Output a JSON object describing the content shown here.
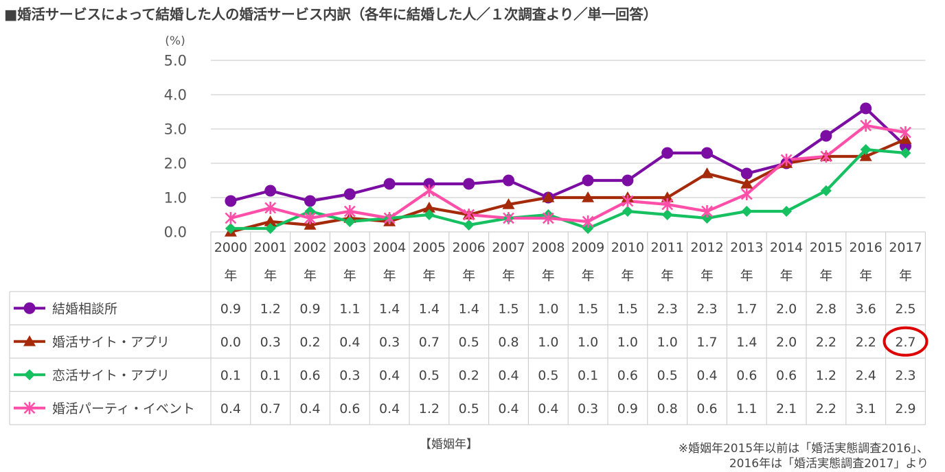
{
  "title": "■婚活サービスによって結婚した人の婚活サービス内訳（各年に結婚した人／１次調査より／単一回答）",
  "x_axis_label": "【婚姻年】",
  "footnote": [
    "※婚姻年2015年以前は「婚活実態調査2016」、",
    "2016年は「婚活実態調査2017」より"
  ],
  "colors": {
    "kekkon_soudansho": "#7B0DA3",
    "konkatsu_site": "#A52A0A",
    "renkatsu_site": "#16C060",
    "konkatsu_party": "#FF4FA8",
    "grid": "#D0D0D0",
    "highlight": "#DD0000"
  },
  "chart_data": {
    "type": "line",
    "unit": "(%)",
    "ylim": [
      0,
      5
    ],
    "yticks": [
      "0.0",
      "1.0",
      "2.0",
      "3.0",
      "4.0",
      "5.0"
    ],
    "grid": true,
    "legend": "data-table-left",
    "categories": [
      "2000",
      "2001",
      "2002",
      "2003",
      "2004",
      "2005",
      "2006",
      "2007",
      "2008",
      "2009",
      "2010",
      "2011",
      "2012",
      "2013",
      "2014",
      "2015",
      "2016",
      "2017"
    ],
    "category_suffix": "年",
    "series": [
      {
        "name": "結婚相談所",
        "color_key": "kekkon_soudansho",
        "marker": "circle",
        "values": [
          0.9,
          1.2,
          0.9,
          1.1,
          1.4,
          1.4,
          1.4,
          1.5,
          1.0,
          1.5,
          1.5,
          2.3,
          2.3,
          1.7,
          2.0,
          2.8,
          3.6,
          2.5
        ],
        "labels": [
          "0.9",
          "1.2",
          "0.9",
          "1.1",
          "1.4",
          "1.4",
          "1.4",
          "1.5",
          "1.0",
          "1.5",
          "1.5",
          "2.3",
          "2.3",
          "1.7",
          "2.0",
          "2.8",
          "3.6",
          "2.5"
        ]
      },
      {
        "name": "婚活サイト・アプリ",
        "color_key": "konkatsu_site",
        "marker": "triangle",
        "values": [
          0.0,
          0.3,
          0.2,
          0.4,
          0.3,
          0.7,
          0.5,
          0.8,
          1.0,
          1.0,
          1.0,
          1.0,
          1.7,
          1.4,
          2.0,
          2.2,
          2.2,
          2.7
        ],
        "labels": [
          "0.0",
          "0.3",
          "0.2",
          "0.4",
          "0.3",
          "0.7",
          "0.5",
          "0.8",
          "1.0",
          "1.0",
          "1.0",
          "1.0",
          "1.7",
          "1.4",
          "2.0",
          "2.2",
          "2.2",
          "2.7"
        ]
      },
      {
        "name": "恋活サイト・アプリ",
        "color_key": "renkatsu_site",
        "marker": "diamond",
        "values": [
          0.1,
          0.1,
          0.6,
          0.3,
          0.4,
          0.5,
          0.2,
          0.4,
          0.5,
          0.1,
          0.6,
          0.5,
          0.4,
          0.6,
          0.6,
          1.2,
          2.4,
          2.3
        ],
        "labels": [
          "0.1",
          "0.1",
          "0.6",
          "0.3",
          "0.4",
          "0.5",
          "0.2",
          "0.4",
          "0.5",
          "0.1",
          "0.6",
          "0.5",
          "0.4",
          "0.6",
          "0.6",
          "1.2",
          "2.4",
          "2.3"
        ]
      },
      {
        "name": "婚活パーティ・イベント",
        "color_key": "konkatsu_party",
        "marker": "star",
        "values": [
          0.4,
          0.7,
          0.4,
          0.6,
          0.4,
          1.2,
          0.5,
          0.4,
          0.4,
          0.3,
          0.9,
          0.8,
          0.6,
          1.1,
          2.1,
          2.2,
          3.1,
          2.9
        ],
        "labels": [
          "0.4",
          "0.7",
          "0.4",
          "0.6",
          "0.4",
          "1.2",
          "0.5",
          "0.4",
          "0.4",
          "0.3",
          "0.9",
          "0.8",
          "0.6",
          "1.1",
          "2.1",
          "2.2",
          "3.1",
          "2.9"
        ]
      }
    ],
    "highlight": {
      "series_index": 1,
      "category_index": 17
    }
  }
}
